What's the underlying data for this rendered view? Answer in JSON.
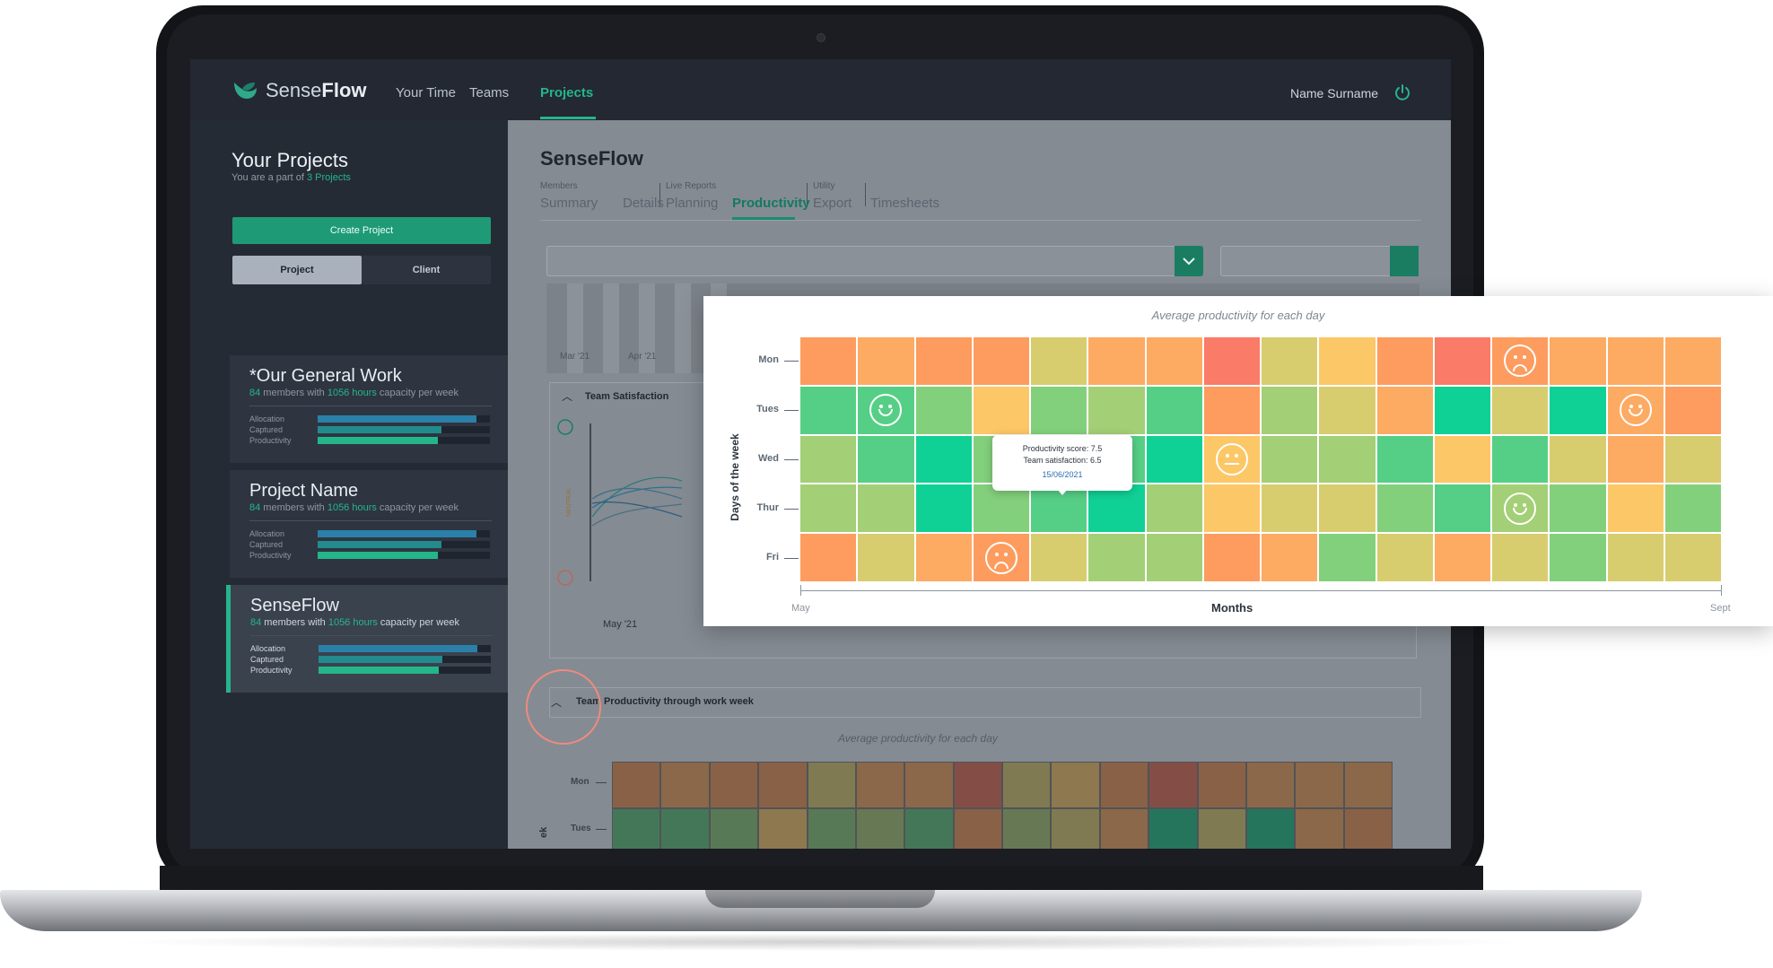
{
  "app": {
    "logo_text_light": "Sense",
    "logo_text_bold": "Flow",
    "nav": [
      "Your Time",
      "Teams",
      "Projects"
    ],
    "nav_active": "Projects",
    "user_name": "Name Surname",
    "accent": "#25b58b"
  },
  "sidebar": {
    "title": "Your Projects",
    "subtitle_prefix": "You are a part of ",
    "subtitle_count": "3 Projects",
    "create_button": "Create Project",
    "toggle": [
      "Project",
      "Client"
    ],
    "metric_labels": [
      "Allocation",
      "Captured",
      "Productivity"
    ],
    "projects": [
      {
        "name": "*Our General Work",
        "members": "84",
        "members_text": " members with ",
        "hours": "1056 hours",
        "hours_text": " capacity per week",
        "allocation": 0.92,
        "captured": 0.72,
        "productivity": 0.7
      },
      {
        "name": "Project Name",
        "members": "84",
        "members_text": " members with ",
        "hours": "1056 hours",
        "hours_text": " capacity per week",
        "allocation": 0.92,
        "captured": 0.72,
        "productivity": 0.7
      },
      {
        "name": "SenseFlow",
        "members": "84",
        "members_text": " members with ",
        "hours": "1056 hours",
        "hours_text": " capacity per week",
        "allocation": 0.92,
        "captured": 0.72,
        "productivity": 0.7
      }
    ]
  },
  "main": {
    "project_title": "SenseFlow",
    "tab_groups": [
      "Members",
      "Live Reports",
      "Utility"
    ],
    "tabs": [
      "Summary",
      "Details",
      "Planning",
      "Productivity",
      "Export",
      "Timesheets"
    ],
    "active_tab": "Productivity",
    "bg_chart_labels": [
      "Mar '21",
      "Apr '21"
    ],
    "panel_satisfaction": "Team Satisfaction",
    "satisfaction_axis": "NEUTRAL",
    "satisfaction_x_label": "May '21",
    "panel_productivity": "Team Productivity through work week",
    "bg_heatmap_title": "Average productivity for each day",
    "bg_heatmap_days": [
      "Mon",
      "Tues"
    ],
    "bg_heatmap_ylabel_fragment": "ek"
  },
  "chart_data": {
    "type": "heatmap",
    "title": "Average productivity for each day",
    "xlabel": "Months",
    "ylabel": "Days of the week",
    "x_range_labels": [
      "May",
      "Sept"
    ],
    "rows": [
      "Mon",
      "Tues",
      "Wed",
      "Thur",
      "Fri"
    ],
    "colors": {
      "R": "#fa7b68",
      "O": "#fd9c5e",
      "L": "#fdaa63",
      "Y": "#fcc767",
      "K": "#d8cd6e",
      "G": "#a3cf76",
      "M": "#83d07c",
      "E": "#56cf86",
      "T": "#10d195"
    },
    "cells": [
      [
        "O",
        "L",
        "O",
        "O",
        "K",
        "L",
        "L",
        "R",
        "K",
        "Y",
        "O",
        "R",
        "O",
        "L",
        "L",
        "L"
      ],
      [
        "E",
        "E",
        "M",
        "Y",
        "M",
        "G",
        "E",
        "O",
        "G",
        "K",
        "L",
        "T",
        "K",
        "T",
        "L",
        "O"
      ],
      [
        "G",
        "E",
        "T",
        "M",
        "E",
        "E",
        "T",
        "Y",
        "G",
        "G",
        "E",
        "Y",
        "E",
        "K",
        "L",
        "K"
      ],
      [
        "G",
        "G",
        "T",
        "M",
        "E",
        "T",
        "G",
        "Y",
        "K",
        "K",
        "M",
        "E",
        "G",
        "M",
        "Y",
        "M"
      ],
      [
        "O",
        "K",
        "L",
        "O",
        "K",
        "G",
        "G",
        "O",
        "L",
        "M",
        "K",
        "L",
        "K",
        "M",
        "K",
        "K"
      ]
    ],
    "faces": [
      {
        "row": 0,
        "col": 12,
        "mood": "sad"
      },
      {
        "row": 1,
        "col": 1,
        "mood": "happy"
      },
      {
        "row": 1,
        "col": 14,
        "mood": "happy"
      },
      {
        "row": 2,
        "col": 7,
        "mood": "neutral"
      },
      {
        "row": 3,
        "col": 12,
        "mood": "happy"
      },
      {
        "row": 4,
        "col": 3,
        "mood": "sad"
      }
    ],
    "tooltip": {
      "row": 3,
      "col": 4,
      "productivity_label": "Productivity score: 7.5",
      "satisfaction_label": "Team satisfaction: 6.5",
      "date": "15/06/2021"
    }
  }
}
